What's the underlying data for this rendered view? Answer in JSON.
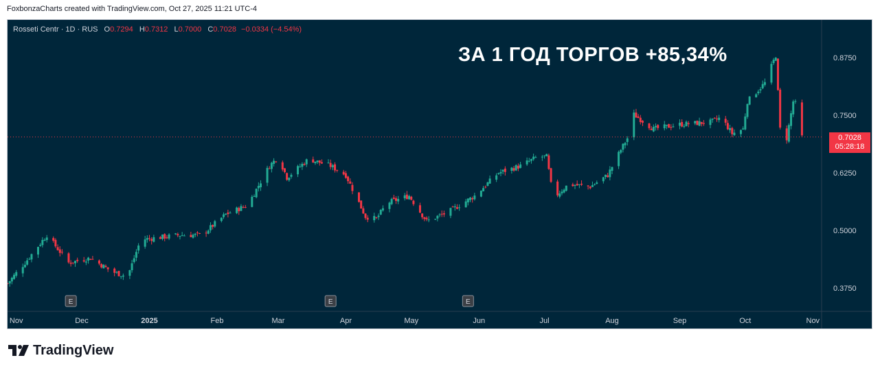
{
  "header": {
    "text": "FoxbonzaCharts created with TradingView.com, Oct 27, 2025 11:21 UTC-4"
  },
  "legend": {
    "symbol": "Rosseti Centr · 1D · RUS",
    "o_label": "O",
    "o_value": "0.7294",
    "h_label": "H",
    "h_value": "0.7312",
    "l_label": "L",
    "l_value": "0.7000",
    "c_label": "C",
    "c_value": "0.7028",
    "change": "−0.0334 (−4.54%)"
  },
  "headline": "ЗА 1 ГОД ТОРГОВ +85,34%",
  "price_tag": {
    "price": "0.7028",
    "countdown": "05:28:18"
  },
  "logo": {
    "wordmark": "TradingView"
  },
  "colors": {
    "background": "#00263a",
    "up": "#22ab94",
    "down": "#f23645",
    "text": "#d1d4dc"
  },
  "icons": [
    "tradingview-logo-icon",
    "earnings-marker-icon"
  ],
  "chart_data": {
    "type": "candlestick",
    "title": "Rosseti Centr · 1D · RUS",
    "y_axis": {
      "position": "right",
      "range": [
        0.33,
        0.93
      ],
      "tick_labels": [
        "0.8750",
        "0.7500",
        "0.6250",
        "0.5000",
        "0.3750"
      ]
    },
    "x_axis": {
      "range": [
        "2024-10-28",
        "2025-11-05"
      ],
      "tick_labels": [
        {
          "label": "Nov",
          "date": "2024-11-01"
        },
        {
          "label": "Dec",
          "date": "2024-12-01"
        },
        {
          "label": "2025",
          "date": "2025-01-01"
        },
        {
          "label": "Feb",
          "date": "2025-02-01"
        },
        {
          "label": "Mar",
          "date": "2025-03-01"
        },
        {
          "label": "Apr",
          "date": "2025-04-01"
        },
        {
          "label": "May",
          "date": "2025-05-01"
        },
        {
          "label": "Jun",
          "date": "2025-06-01"
        },
        {
          "label": "Jul",
          "date": "2025-07-01"
        },
        {
          "label": "Aug",
          "date": "2025-08-01"
        },
        {
          "label": "Sep",
          "date": "2025-09-01"
        },
        {
          "label": "Oct",
          "date": "2025-10-01"
        },
        {
          "label": "Nov",
          "date": "2025-11-01"
        }
      ]
    },
    "grid": false,
    "last_price": 0.7028,
    "event_markers": [
      {
        "label": "E",
        "date": "2024-11-26"
      },
      {
        "label": "E",
        "date": "2025-03-25"
      },
      {
        "label": "E",
        "date": "2025-05-27"
      }
    ],
    "series_close": [
      {
        "date": "2024-10-28",
        "close": 0.385
      },
      {
        "date": "2024-11-05",
        "close": 0.43
      },
      {
        "date": "2024-11-15",
        "close": 0.49
      },
      {
        "date": "2024-11-25",
        "close": 0.43
      },
      {
        "date": "2024-12-05",
        "close": 0.44
      },
      {
        "date": "2024-12-15",
        "close": 0.41
      },
      {
        "date": "2024-12-22",
        "close": 0.4
      },
      {
        "date": "2024-12-28",
        "close": 0.48
      },
      {
        "date": "2025-01-15",
        "close": 0.49
      },
      {
        "date": "2025-01-25",
        "close": 0.49
      },
      {
        "date": "2025-02-05",
        "close": 0.535
      },
      {
        "date": "2025-02-15",
        "close": 0.555
      },
      {
        "date": "2025-02-25",
        "close": 0.64
      },
      {
        "date": "2025-03-01",
        "close": 0.66
      },
      {
        "date": "2025-03-05",
        "close": 0.615
      },
      {
        "date": "2025-03-15",
        "close": 0.655
      },
      {
        "date": "2025-03-25",
        "close": 0.64
      },
      {
        "date": "2025-04-01",
        "close": 0.62
      },
      {
        "date": "2025-04-10",
        "close": 0.53
      },
      {
        "date": "2025-04-15",
        "close": 0.525
      },
      {
        "date": "2025-04-20",
        "close": 0.56
      },
      {
        "date": "2025-04-30",
        "close": 0.575
      },
      {
        "date": "2025-05-08",
        "close": 0.52
      },
      {
        "date": "2025-05-18",
        "close": 0.54
      },
      {
        "date": "2025-05-30",
        "close": 0.575
      },
      {
        "date": "2025-06-10",
        "close": 0.625
      },
      {
        "date": "2025-06-20",
        "close": 0.64
      },
      {
        "date": "2025-06-28",
        "close": 0.66
      },
      {
        "date": "2025-07-02",
        "close": 0.66
      },
      {
        "date": "2025-07-05",
        "close": 0.57
      },
      {
        "date": "2025-07-12",
        "close": 0.6
      },
      {
        "date": "2025-07-22",
        "close": 0.595
      },
      {
        "date": "2025-07-30",
        "close": 0.62
      },
      {
        "date": "2025-08-05",
        "close": 0.675
      },
      {
        "date": "2025-08-08",
        "close": 0.7
      },
      {
        "date": "2025-08-10",
        "close": 0.755
      },
      {
        "date": "2025-08-20",
        "close": 0.72
      },
      {
        "date": "2025-09-01",
        "close": 0.73
      },
      {
        "date": "2025-09-15",
        "close": 0.735
      },
      {
        "date": "2025-09-20",
        "close": 0.745
      },
      {
        "date": "2025-09-25",
        "close": 0.71
      },
      {
        "date": "2025-09-30",
        "close": 0.72
      },
      {
        "date": "2025-10-02",
        "close": 0.78
      },
      {
        "date": "2025-10-10",
        "close": 0.82
      },
      {
        "date": "2025-10-15",
        "close": 0.88
      },
      {
        "date": "2025-10-17",
        "close": 0.72
      },
      {
        "date": "2025-10-20",
        "close": 0.7
      },
      {
        "date": "2025-10-23",
        "close": 0.78
      },
      {
        "date": "2025-10-25",
        "close": 0.77
      },
      {
        "date": "2025-10-27",
        "close": 0.7028
      }
    ]
  }
}
